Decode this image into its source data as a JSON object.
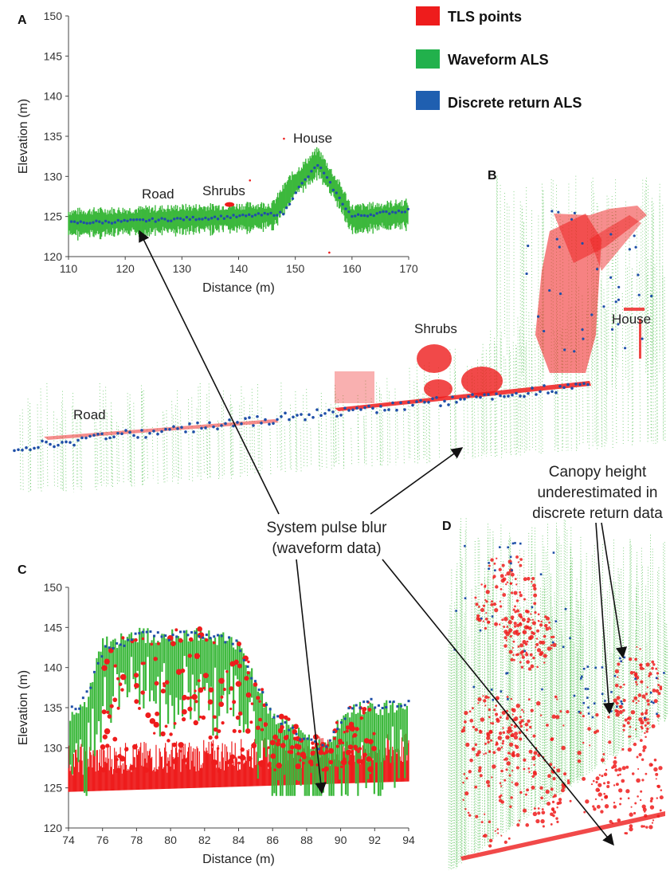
{
  "legend": [
    {
      "label": "TLS points",
      "color": "#ee1c1c"
    },
    {
      "label": "Waveform ALS",
      "color": "#22b14c"
    },
    {
      "label": "Discrete return ALS",
      "color": "#1f5fb0"
    }
  ],
  "colors": {
    "tls": "#ee1c1c",
    "waveform": "#3cb83c",
    "discrete": "#1f4fa8"
  },
  "panels": {
    "A": {
      "letter": "A",
      "annotations": [
        "House",
        "Road",
        "Shrubs"
      ]
    },
    "B": {
      "letter": "B",
      "annotations": [
        "Road",
        "Shrubs",
        "House"
      ]
    },
    "C": {
      "letter": "C"
    },
    "D": {
      "letter": "D"
    }
  },
  "callouts": {
    "blur_line1": "System pulse blur",
    "blur_line2": "(waveform data)",
    "canopy_line1": "Canopy height",
    "canopy_line2": "underestimated in",
    "canopy_line3": "discrete return data"
  },
  "chart_data": [
    {
      "panel": "A",
      "type": "scatter",
      "title": "",
      "xlabel": "Distance (m)",
      "ylabel": "Elevation (m)",
      "xlim": [
        110,
        170
      ],
      "ylim": [
        120,
        150
      ],
      "xticks": [
        110,
        120,
        130,
        140,
        150,
        160,
        170
      ],
      "yticks": [
        120,
        125,
        130,
        135,
        140,
        145,
        150
      ],
      "series": [
        {
          "name": "Waveform ALS",
          "profile": [
            [
              110,
              124.3
            ],
            [
              120,
              124.5
            ],
            [
              130,
              124.8
            ],
            [
              140,
              125.0
            ],
            [
              146,
              125.2
            ],
            [
              149,
              128.5
            ],
            [
              154,
              132.0
            ],
            [
              158,
              127.5
            ],
            [
              160,
              124.8
            ],
            [
              170,
              125.5
            ]
          ]
        },
        {
          "name": "Discrete return ALS",
          "profile": [
            [
              110,
              124.2
            ],
            [
              120,
              124.4
            ],
            [
              130,
              124.7
            ],
            [
              140,
              125.0
            ],
            [
              148,
              125.4
            ],
            [
              150,
              128.0
            ],
            [
              154,
              131.5
            ],
            [
              158,
              127.0
            ],
            [
              160,
              125.0
            ],
            [
              170,
              125.8
            ]
          ]
        },
        {
          "name": "TLS points",
          "points": [
            [
              138,
              126.4
            ],
            [
              139,
              126.5
            ],
            [
              142,
              129.5
            ],
            [
              148,
              134.7
            ],
            [
              156,
              120.5
            ]
          ]
        }
      ]
    },
    {
      "panel": "C",
      "type": "scatter",
      "title": "",
      "xlabel": "Distance (m)",
      "ylabel": "Elevation (m)",
      "xlim": [
        74,
        94
      ],
      "ylim": [
        120,
        150
      ],
      "xticks": [
        74,
        76,
        78,
        80,
        82,
        84,
        86,
        88,
        90,
        92,
        94
      ],
      "yticks": [
        120,
        125,
        130,
        135,
        140,
        145,
        150
      ],
      "series": [
        {
          "name": "Waveform ALS",
          "canopy_top": [
            [
              74,
              135
            ],
            [
              75,
              136
            ],
            [
              76,
              144
            ],
            [
              78,
              145
            ],
            [
              80,
              145
            ],
            [
              82,
              145
            ],
            [
              84,
              144
            ],
            [
              85,
              139
            ],
            [
              86,
              135
            ],
            [
              88,
              132
            ],
            [
              89,
              131
            ],
            [
              90,
              134
            ],
            [
              91,
              136
            ],
            [
              92,
              136
            ],
            [
              94,
              136
            ]
          ]
        },
        {
          "name": "Discrete return ALS",
          "canopy_top": [
            [
              74,
              134.5
            ],
            [
              75,
              136
            ],
            [
              76,
              142
            ],
            [
              78,
              144
            ],
            [
              80,
              144
            ],
            [
              82,
              144
            ],
            [
              84,
              143
            ],
            [
              85,
              138
            ],
            [
              86,
              134
            ],
            [
              88,
              131
            ],
            [
              89,
              130
            ],
            [
              90,
              133.5
            ],
            [
              91,
              135.5
            ],
            [
              92,
              135.5
            ],
            [
              94,
              135.5
            ]
          ]
        },
        {
          "name": "TLS points",
          "ground": [
            [
              74,
              124.5
            ],
            [
              94,
              125.8
            ]
          ]
        }
      ]
    }
  ]
}
